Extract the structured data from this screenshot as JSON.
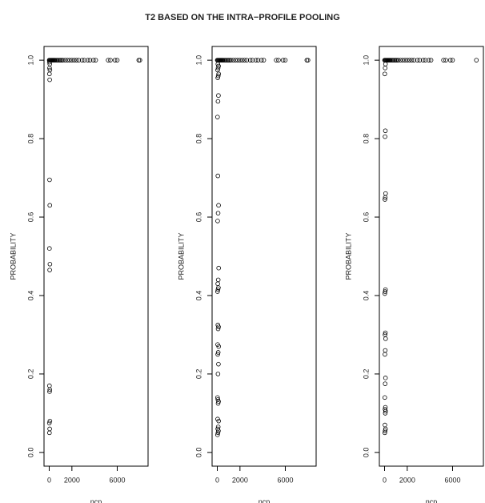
{
  "title": "T2 BASED ON THE INTRA−PROFILE POOLING",
  "chart_data": [
    {
      "type": "scatter",
      "xlabel": "ncp",
      "ylabel": "PROBABILITY",
      "color": "#000000",
      "xlim": [
        -460,
        8720
      ],
      "ylim": [
        -0.035,
        1.035
      ],
      "xticks": [
        0,
        2000,
        6000
      ],
      "yticks": [
        {
          "value": 0,
          "label": "0.0"
        },
        {
          "value": 0.2,
          "label": "0.2"
        },
        {
          "value": 0.4,
          "label": "0.4"
        },
        {
          "value": 0.6,
          "label": "0.6"
        },
        {
          "value": 0.8,
          "label": "0.8"
        },
        {
          "value": 1,
          "label": "1.0"
        }
      ],
      "x": [
        0,
        50,
        100,
        150,
        200,
        250,
        300,
        350,
        400,
        450,
        500,
        600,
        700,
        800,
        900,
        1000,
        1100,
        1200,
        1400,
        1600,
        1800,
        2000,
        2200,
        2400,
        2600,
        2900,
        3100,
        3400,
        3600,
        3900,
        4100,
        5200,
        5400,
        5800,
        6000,
        7900,
        8000,
        20,
        40,
        10,
        60,
        30,
        50,
        20,
        40,
        60,
        20,
        50,
        30,
        40,
        20,
        60,
        30,
        50,
        10
      ],
      "values": [
        1,
        1,
        1,
        1,
        1,
        1,
        1,
        1,
        1,
        1,
        1,
        1,
        1,
        1,
        1,
        1,
        1,
        1,
        1,
        1,
        1,
        1,
        1,
        1,
        1,
        1,
        1,
        1,
        1,
        1,
        1,
        1,
        1,
        1,
        1,
        1,
        1,
        0.05,
        0.06,
        0.075,
        0.08,
        0.155,
        0.16,
        0.17,
        0.465,
        0.48,
        0.52,
        0.63,
        0.695,
        0.95,
        0.965,
        0.975,
        0.98,
        0.99,
        0.995
      ]
    },
    {
      "type": "scatter",
      "xlabel": "ncp",
      "ylabel": "PROBABILITY",
      "color": "#000000",
      "xlim": [
        -460,
        8720
      ],
      "ylim": [
        -0.035,
        1.035
      ],
      "xticks": [
        0,
        2000,
        6000
      ],
      "yticks": [
        {
          "value": 0,
          "label": "0.0"
        },
        {
          "value": 0.2,
          "label": "0.2"
        },
        {
          "value": 0.4,
          "label": "0.4"
        },
        {
          "value": 0.6,
          "label": "0.6"
        },
        {
          "value": 0.8,
          "label": "0.8"
        },
        {
          "value": 1,
          "label": "1.0"
        }
      ],
      "x": [
        0,
        50,
        100,
        150,
        200,
        250,
        300,
        350,
        400,
        450,
        500,
        600,
        700,
        800,
        900,
        1000,
        1100,
        1200,
        1400,
        1600,
        1800,
        2000,
        2200,
        2400,
        2600,
        2900,
        3100,
        3400,
        3600,
        3900,
        4100,
        5200,
        5400,
        5800,
        6000,
        7900,
        8000,
        20,
        60,
        100,
        40,
        80,
        120,
        30,
        70,
        110,
        50,
        20,
        60,
        100,
        40,
        80,
        120,
        30,
        70,
        110,
        50,
        20,
        60,
        100,
        40,
        80,
        120,
        30,
        70,
        110,
        50,
        20,
        60,
        100,
        40,
        80,
        120,
        30,
        70,
        110,
        50
      ],
      "values": [
        1,
        1,
        1,
        1,
        1,
        1,
        1,
        1,
        1,
        1,
        1,
        1,
        1,
        1,
        1,
        1,
        1,
        1,
        1,
        1,
        1,
        1,
        1,
        1,
        1,
        1,
        1,
        1,
        1,
        1,
        1,
        1,
        1,
        1,
        1,
        1,
        1,
        0.045,
        0.05,
        0.055,
        0.06,
        0.065,
        0.08,
        0.085,
        0.125,
        0.13,
        0.135,
        0.14,
        0.2,
        0.225,
        0.25,
        0.255,
        0.27,
        0.275,
        0.315,
        0.32,
        0.325,
        0.41,
        0.415,
        0.42,
        0.43,
        0.44,
        0.47,
        0.59,
        0.61,
        0.63,
        0.705,
        0.855,
        0.895,
        0.91,
        0.955,
        0.96,
        0.965,
        0.975,
        0.98,
        0.985,
        0.99
      ]
    },
    {
      "type": "scatter",
      "xlabel": "ncp",
      "ylabel": "PROBABILITY",
      "color": "#000000",
      "xlim": [
        -460,
        8720
      ],
      "ylim": [
        -0.035,
        1.035
      ],
      "xticks": [
        0,
        2000,
        6000
      ],
      "yticks": [
        {
          "value": 0,
          "label": "0.0"
        },
        {
          "value": 0.2,
          "label": "0.2"
        },
        {
          "value": 0.4,
          "label": "0.4"
        },
        {
          "value": 0.6,
          "label": "0.6"
        },
        {
          "value": 0.8,
          "label": "0.8"
        },
        {
          "value": 1,
          "label": "1.0"
        }
      ],
      "x": [
        0,
        50,
        100,
        150,
        200,
        250,
        300,
        350,
        400,
        450,
        500,
        600,
        700,
        800,
        900,
        1000,
        1100,
        1200,
        1400,
        1600,
        1800,
        2000,
        2200,
        2400,
        2600,
        2900,
        3100,
        3400,
        3600,
        3900,
        4100,
        5200,
        5400,
        5800,
        6000,
        8100,
        20,
        50,
        80,
        30,
        60,
        90,
        40,
        70,
        20,
        50,
        80,
        30,
        60,
        90,
        40,
        70,
        20,
        50,
        80,
        30,
        60,
        90,
        40,
        70,
        20,
        50,
        80
      ],
      "values": [
        1,
        1,
        1,
        1,
        1,
        1,
        1,
        1,
        1,
        1,
        1,
        1,
        1,
        1,
        1,
        1,
        1,
        1,
        1,
        1,
        1,
        1,
        1,
        1,
        1,
        1,
        1,
        1,
        1,
        1,
        1,
        1,
        1,
        1,
        1,
        1,
        0.05,
        0.055,
        0.06,
        0.07,
        0.1,
        0.105,
        0.11,
        0.115,
        0.14,
        0.175,
        0.19,
        0.25,
        0.26,
        0.29,
        0.3,
        0.305,
        0.405,
        0.41,
        0.415,
        0.645,
        0.65,
        0.66,
        0.805,
        0.82,
        0.965,
        0.98,
        0.99
      ]
    }
  ]
}
